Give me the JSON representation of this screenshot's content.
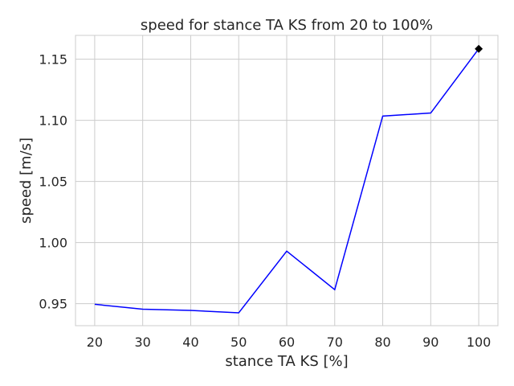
{
  "chart_data": {
    "type": "line",
    "title": "speed for stance TA KS from 20 to 100%",
    "xlabel": "stance TA KS [%]",
    "ylabel": "speed [m/s]",
    "x": [
      20,
      30,
      40,
      50,
      60,
      70,
      80,
      90,
      100
    ],
    "series": [
      {
        "values": [
          0.9495,
          0.9455,
          0.9445,
          0.9425,
          0.993,
          0.9615,
          1.1035,
          1.106,
          1.1585
        ]
      }
    ],
    "highlight": {
      "x": 100,
      "y": 1.1585,
      "marker": "diamond"
    },
    "xlim": [
      16,
      104
    ],
    "ylim": [
      0.932,
      1.1695
    ],
    "xticks": [
      20,
      30,
      40,
      50,
      60,
      70,
      80,
      90,
      100
    ],
    "yticks": [
      0.95,
      1.0,
      1.05,
      1.1,
      1.15
    ],
    "ytick_labels": [
      "0.95",
      "1.00",
      "1.05",
      "1.10",
      "1.15"
    ],
    "grid": true,
    "colors": {
      "line": "#0000ff",
      "marker": "#000000",
      "grid": "#cccccc"
    }
  }
}
